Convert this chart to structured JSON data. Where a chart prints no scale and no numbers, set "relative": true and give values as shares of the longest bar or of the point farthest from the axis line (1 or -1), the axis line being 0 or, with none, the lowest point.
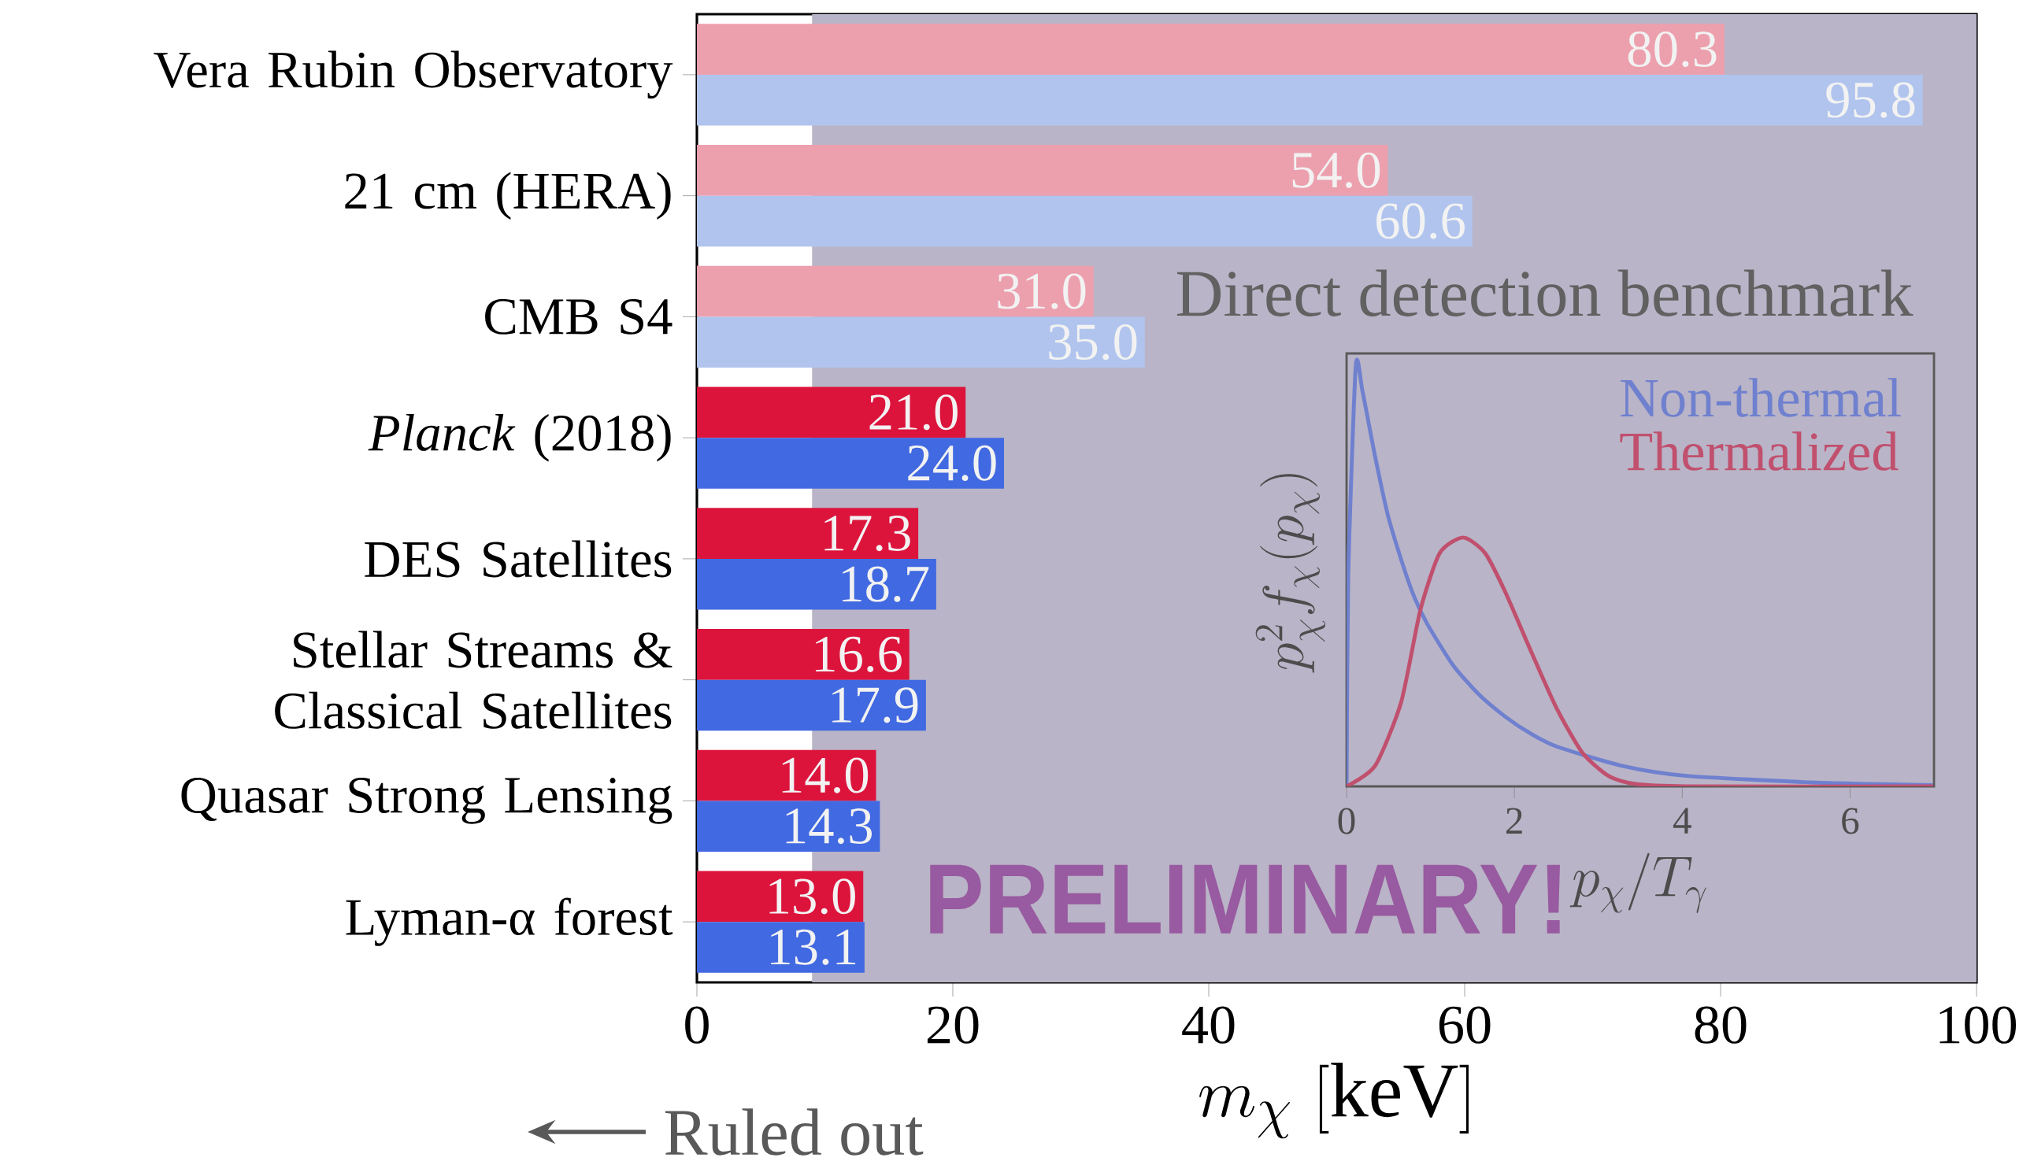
{
  "chart_data": [
    {
      "type": "bar",
      "orientation": "horizontal",
      "categories": [
        "Vera Rubin Observatory",
        "21 cm (HERA)",
        "CMB S4",
        "*Planck* (2018)",
        "DES Satellites",
        "Stellar Streams & Classical Satellites",
        "Quasar Strong Lensing",
        "Lyman-α forest"
      ],
      "series": [
        {
          "colors": [
            "#eca0ae",
            "#eca0ae",
            "#eca0ae",
            "#dc143c",
            "#dc143c",
            "#dc143c",
            "#dc143c",
            "#dc143c"
          ],
          "values": [
            80.3,
            54.0,
            31.0,
            21.0,
            17.3,
            16.6,
            14.0,
            13.0
          ],
          "value_labels": [
            "80.3",
            "54.0",
            "31.0",
            "21.0",
            "17.3",
            "16.6",
            "14.0",
            "13.0"
          ]
        },
        {
          "colors": [
            "#b0c4ee",
            "#b0c4ee",
            "#b0c4ee",
            "#4169e1",
            "#4169e1",
            "#4169e1",
            "#4169e1",
            "#4169e1"
          ],
          "values": [
            95.8,
            60.6,
            35.0,
            24.0,
            18.7,
            17.9,
            14.3,
            13.1
          ],
          "value_labels": [
            "95.8",
            "60.6",
            "35.0",
            "24.0",
            "18.7",
            "17.9",
            "14.3",
            "13.1"
          ]
        }
      ],
      "xlabel": "m_\\chi\\ [\\mathrm{keV}]",
      "xlim": [
        0,
        100
      ],
      "xticks": [
        0,
        20,
        40,
        60,
        80,
        100
      ],
      "bands": [
        {
          "axis": "x",
          "from": 9,
          "to": 100,
          "label": "Direct detection benchmark",
          "color": "#b9b4c7"
        }
      ],
      "annotations": [
        "PRELIMINARY!",
        "Ruled out"
      ]
    },
    {
      "type": "line",
      "relative": true,
      "xlabel": "p_\\chi/T_\\gamma",
      "ylabel": "p_\\chi^2 f_\\chi(p_\\chi)",
      "xlim": [
        0,
        7
      ],
      "xticks": [
        0,
        2,
        4,
        6
      ],
      "legend": "top right",
      "series": [
        {
          "name": "Non-thermal",
          "color": "#6f80cf",
          "x": [
            0.0,
            0.02,
            0.11,
            0.19,
            0.34,
            0.49,
            0.65,
            0.8,
            0.96,
            1.27,
            1.58,
            1.89,
            2.19,
            2.5,
            3.28,
            4.05,
            5.6,
            6.99
          ],
          "values": [
            0.0,
            0.5,
            1.0,
            0.94,
            0.785,
            0.647,
            0.54,
            0.454,
            0.387,
            0.288,
            0.218,
            0.166,
            0.126,
            0.095,
            0.049,
            0.025,
            0.009,
            0.003
          ]
        },
        {
          "name": "Thermalized",
          "color": "#c0506e",
          "x": [
            0.0,
            0.34,
            0.65,
            0.88,
            1.11,
            1.39,
            1.65,
            1.89,
            2.19,
            2.5,
            2.81,
            3.12,
            3.43,
            4.05,
            6.99
          ],
          "values": [
            0.0,
            0.049,
            0.2,
            0.42,
            0.555,
            0.592,
            0.555,
            0.463,
            0.325,
            0.187,
            0.08,
            0.025,
            0.006,
            0.0,
            0.0
          ]
        }
      ]
    }
  ]
}
